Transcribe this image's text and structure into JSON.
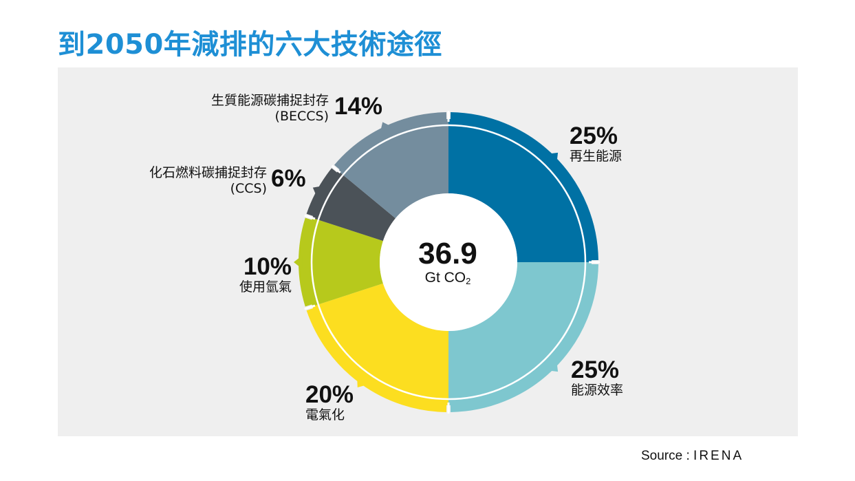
{
  "title": "到2050年減排的六大技術途徑",
  "center": {
    "value": "36.9",
    "unit_prefix": "Gt CO",
    "unit_sub": "2"
  },
  "source": {
    "label": "Source :",
    "brand": "IRENA"
  },
  "colors": {
    "renewables": "#0071a4",
    "efficiency": "#7ec7cf",
    "electrification": "#fcde20",
    "hydrogen": "#b7c91c",
    "ccs": "#4b5258",
    "beccs": "#748d9e",
    "title": "#1e8fd5"
  },
  "chart_data": {
    "type": "pie",
    "title": "到2050年減排的六大技術途徑",
    "total": {
      "value": 36.9,
      "unit": "Gt CO2"
    },
    "slices": [
      {
        "key": "renewables",
        "label": "再生能源",
        "value": 25,
        "pct_text": "25%"
      },
      {
        "key": "efficiency",
        "label": "能源效率",
        "value": 25,
        "pct_text": "25%"
      },
      {
        "key": "electrification",
        "label": "電氣化",
        "value": 20,
        "pct_text": "20%"
      },
      {
        "key": "hydrogen",
        "label": "使用氫氣",
        "value": 10,
        "pct_text": "10%"
      },
      {
        "key": "ccs",
        "label": "化石燃料碳捕捉封存",
        "label2": "(CCS)",
        "value": 6,
        "pct_text": "6%"
      },
      {
        "key": "beccs",
        "label": "生質能源碳捕捉封存",
        "label2": "(BECCS)",
        "value": 14,
        "pct_text": "14%"
      }
    ]
  }
}
